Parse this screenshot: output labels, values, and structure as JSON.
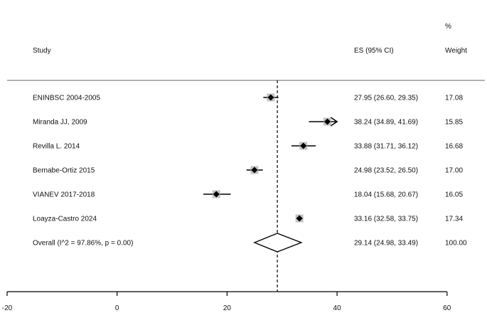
{
  "chart_data": {
    "type": "forest",
    "header": {
      "study": "Study",
      "es": "ES (95% CI)",
      "weight_top": "%",
      "weight": "Weight"
    },
    "studies": [
      {
        "name": "ENINBSC 2004-2005",
        "es": 27.95,
        "lo": 26.6,
        "hi": 29.35,
        "es_text": "27.95 (26.60, 29.35)",
        "weight": "17.08",
        "clipped": false
      },
      {
        "name": "Miranda JJ, 2009",
        "es": 38.24,
        "lo": 34.89,
        "hi": 41.69,
        "es_text": "38.24 (34.89, 41.69)",
        "weight": "15.85",
        "clipped": true
      },
      {
        "name": "Revilla L. 2014",
        "es": 33.88,
        "lo": 31.71,
        "hi": 36.12,
        "es_text": "33.88 (31.71, 36.12)",
        "weight": "16.68",
        "clipped": false
      },
      {
        "name": "Bernabe-Ortiz 2015",
        "es": 24.98,
        "lo": 23.52,
        "hi": 26.5,
        "es_text": "24.98 (23.52, 26.50)",
        "weight": "17.00",
        "clipped": false
      },
      {
        "name": "VIANEV 2017-2018",
        "es": 18.04,
        "lo": 15.68,
        "hi": 20.67,
        "es_text": "18.04 (15.68, 20.67)",
        "weight": "16.05",
        "clipped": false
      },
      {
        "name": "Loayza-Castro 2024",
        "es": 33.16,
        "lo": 32.58,
        "hi": 33.75,
        "es_text": "33.16 (32.58, 33.75)",
        "weight": "17.34",
        "clipped": false
      }
    ],
    "overall": {
      "label": "Overall  (I^2 = 97.86%, p = 0.00)",
      "es": 29.14,
      "lo": 24.98,
      "hi": 33.49,
      "es_text": "29.14 (24.98, 33.49)",
      "weight": "100.00"
    },
    "x_axis": {
      "ticks": [
        -20,
        0,
        20,
        40,
        60
      ],
      "tick_labels": [
        "-20",
        "0",
        "20",
        "40",
        "60"
      ],
      "xlim": [
        -20,
        60
      ],
      "plot_clip_max": 40
    },
    "reference_line": 29.14,
    "colors": {
      "marker": "#000000",
      "weight_box": "#a9a9a9",
      "line": "#000000"
    }
  }
}
